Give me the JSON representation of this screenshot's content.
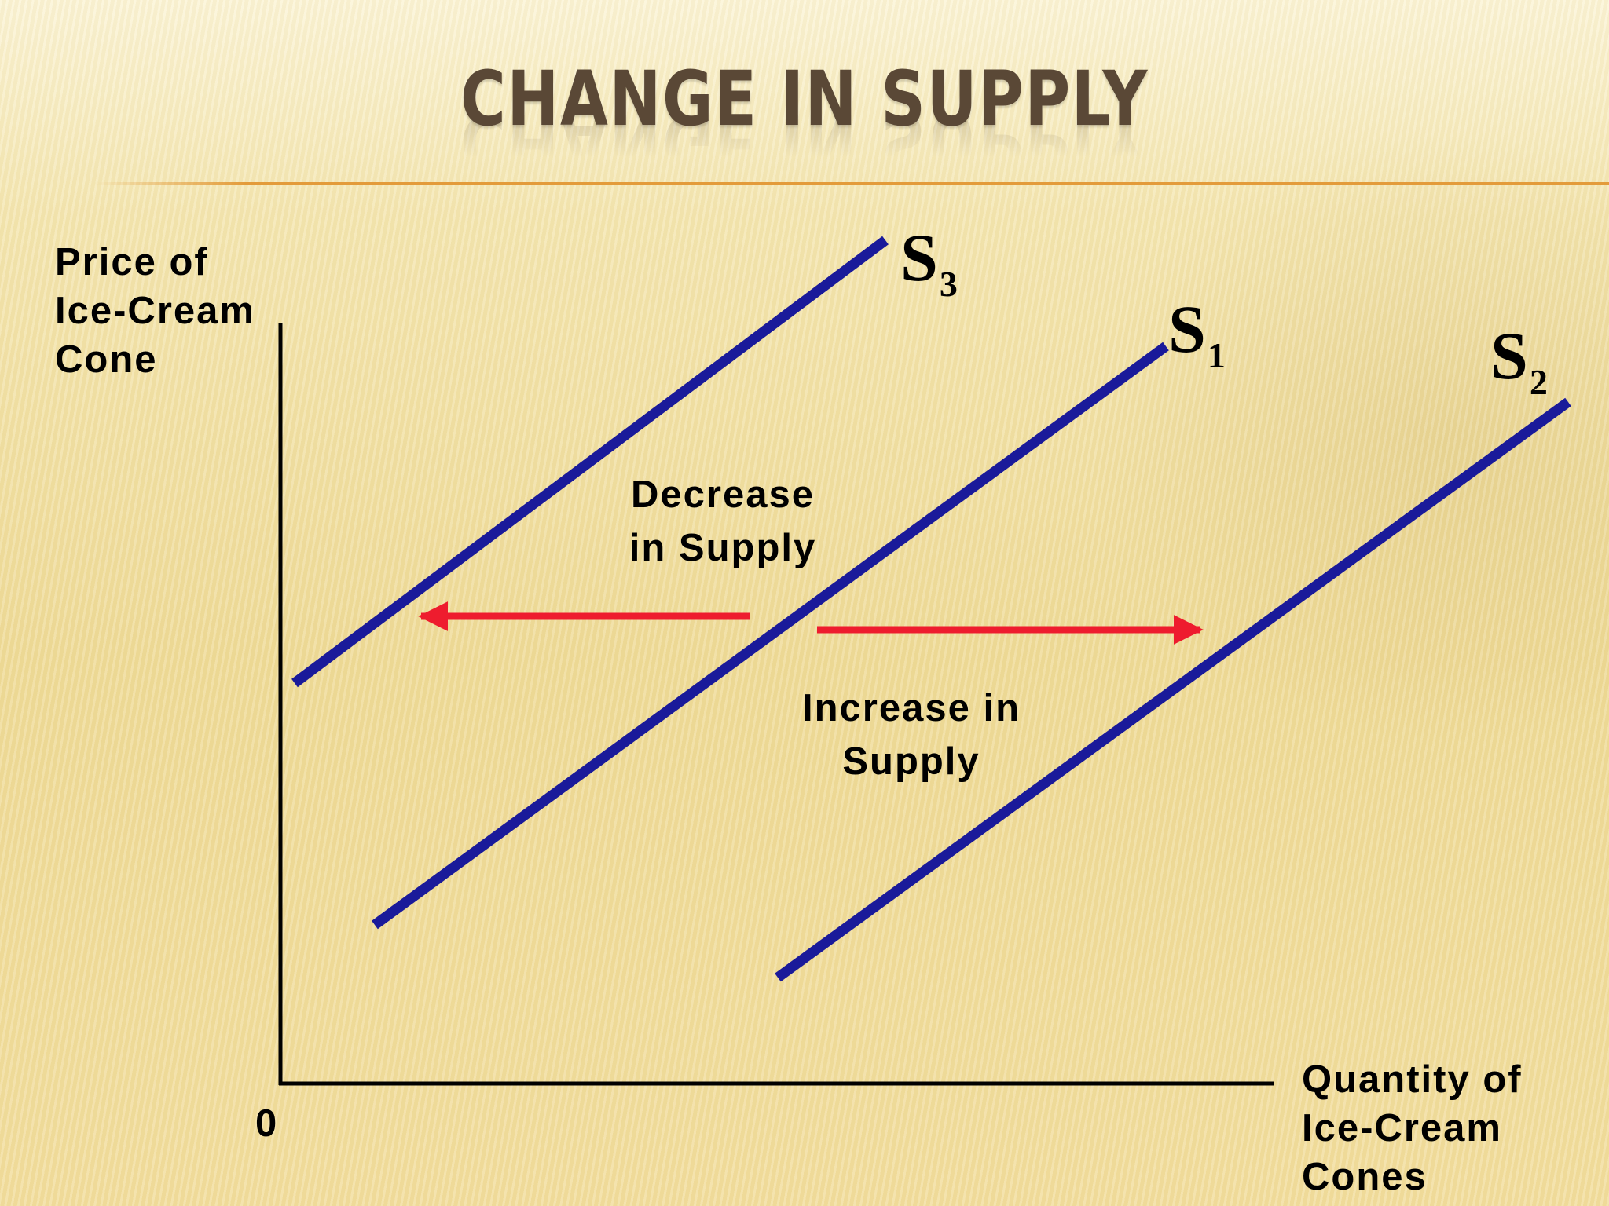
{
  "title": "CHANGE IN SUPPLY",
  "y_axis_label": [
    "Price of",
    "Ice-Cream",
    "Cone"
  ],
  "x_axis_label": [
    "Quantity of",
    "Ice-Cream",
    "Cones"
  ],
  "origin_label": "0",
  "curves": [
    {
      "id": "S3",
      "letter": "S",
      "subscript": "3"
    },
    {
      "id": "S1",
      "letter": "S",
      "subscript": "1"
    },
    {
      "id": "S2",
      "letter": "S",
      "subscript": "2"
    }
  ],
  "annotations": {
    "decrease": [
      "Decrease",
      "in Supply"
    ],
    "increase": [
      "Increase in",
      "Supply"
    ]
  },
  "colors": {
    "curve": "#1a1a9a",
    "arrow": "#ee1c2e",
    "axis": "#000000",
    "title": "#5a4836",
    "rule": "#e39b3a"
  }
}
